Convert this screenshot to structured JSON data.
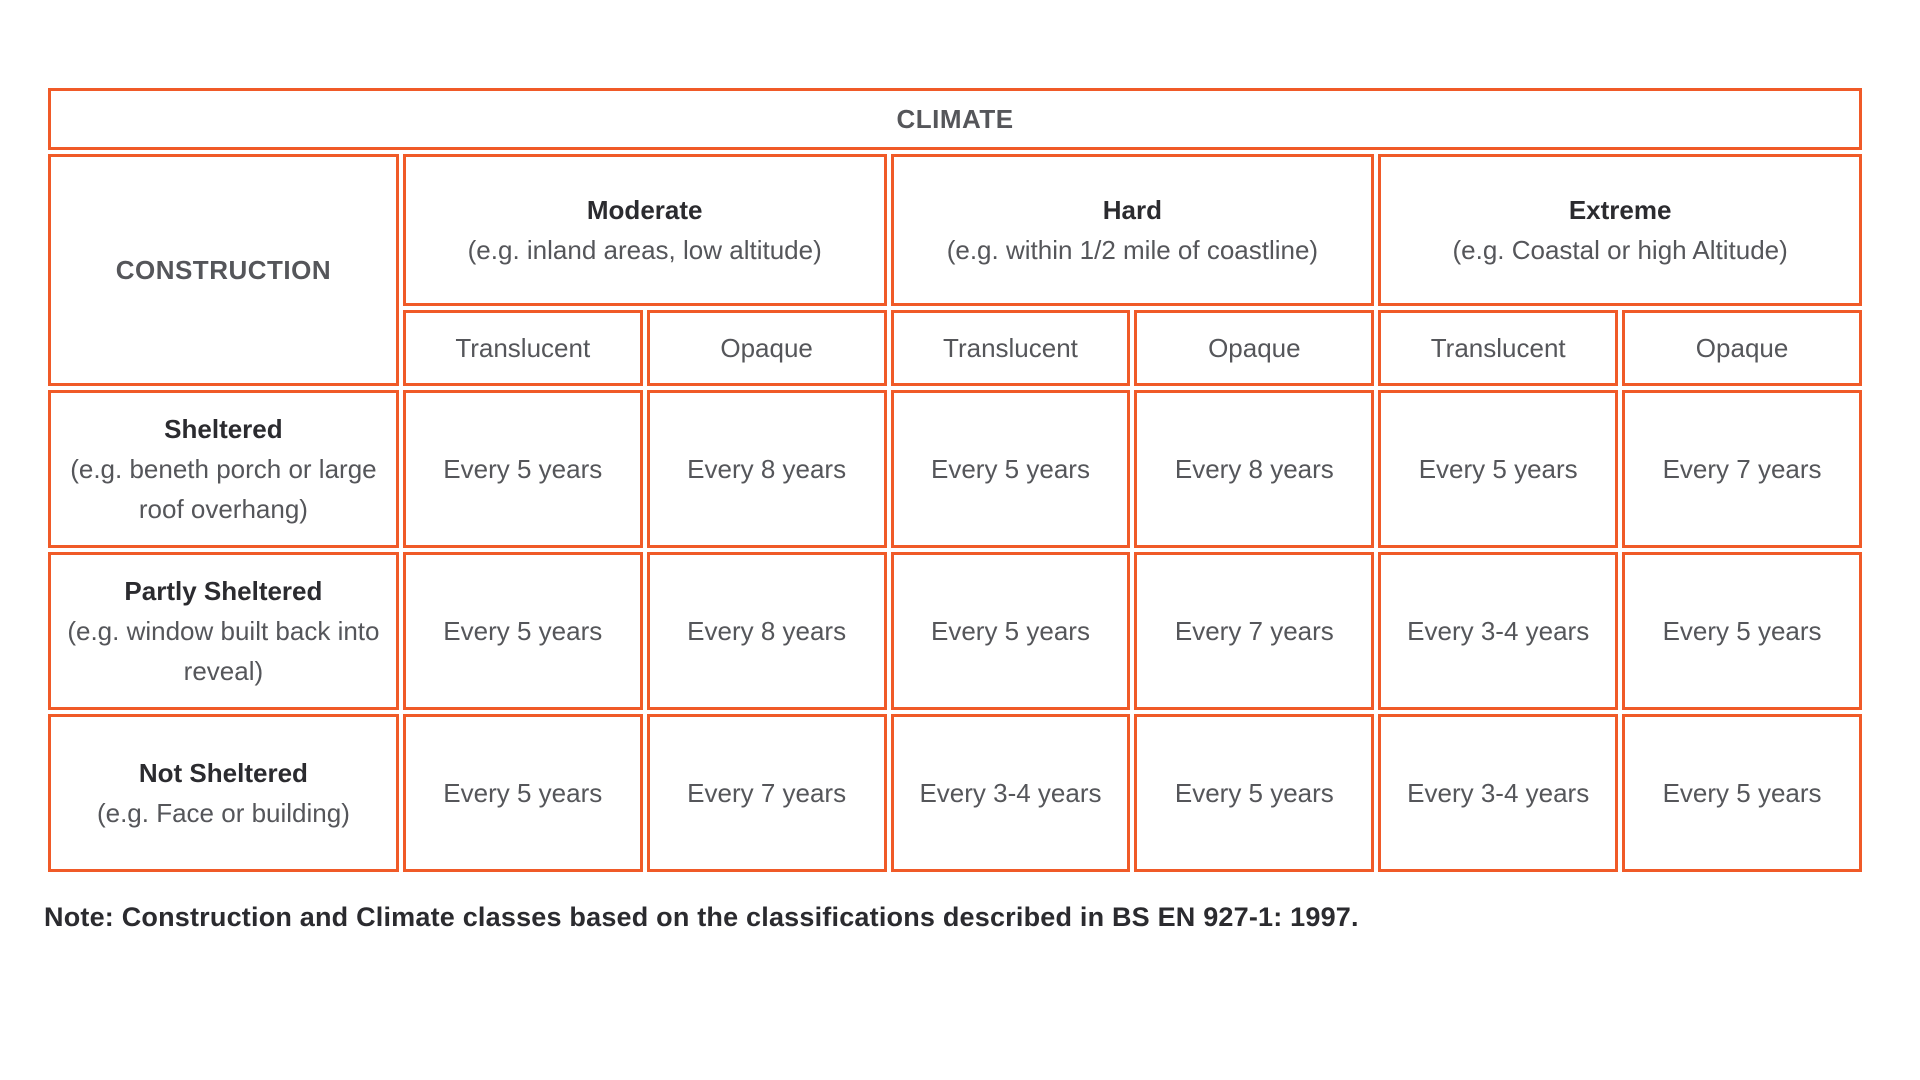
{
  "colors": {
    "border_accent": "#F05A28",
    "header_fill": "#FBD5C0",
    "heading_text": "#2B2B2F",
    "body_text": "#55565A"
  },
  "table": {
    "climate_header": "CLIMATE",
    "construction_header": "CONSTRUCTION",
    "climate_groups": [
      {
        "name": "Moderate",
        "example": "(e.g. inland areas,  low altitude)"
      },
      {
        "name": "Hard",
        "example": "(e.g. within 1/2 mile of coastline)"
      },
      {
        "name": "Extreme",
        "example": "(e.g. Coastal or high Altitude)"
      }
    ],
    "finish_columns": [
      "Translucent",
      "Opaque",
      "Translucent",
      "Opaque",
      "Translucent",
      "Opaque"
    ],
    "rows": [
      {
        "name": "Sheltered",
        "example": "(e.g. beneth porch or large roof overhang)",
        "values": [
          "Every 5 years",
          "Every 8 years",
          "Every 5 years",
          "Every 8 years",
          "Every 5 years",
          "Every 7 years"
        ]
      },
      {
        "name": "Partly Sheltered",
        "example": "(e.g. window built back into reveal)",
        "values": [
          "Every 5 years",
          "Every 8 years",
          "Every 5 years",
          "Every 7 years",
          "Every 3-4 years",
          "Every 5 years"
        ]
      },
      {
        "name": "Not Sheltered",
        "example": "(e.g. Face or building)",
        "values": [
          "Every 5 years",
          "Every 7 years",
          "Every 3-4 years",
          "Every 5 years",
          "Every 3-4 years",
          "Every 5 years"
        ]
      }
    ]
  },
  "note": "Note: Construction and Climate classes based on the classifications described in BS EN 927-1: 1997."
}
